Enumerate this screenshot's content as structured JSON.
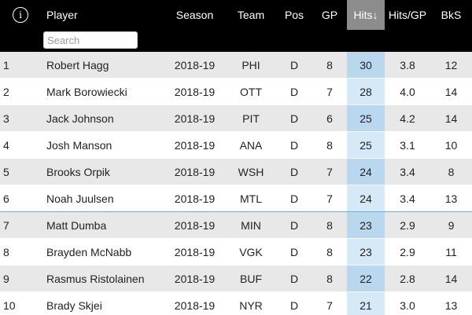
{
  "table": {
    "info_icon": "info-circle-icon",
    "search_placeholder": "Search",
    "columns": {
      "rank": "",
      "player": "Player",
      "season": "Season",
      "team": "Team",
      "pos": "Pos",
      "gp": "GP",
      "hits": "Hits↓",
      "hits_per_gp": "Hits/GP",
      "bks": "BkS"
    },
    "sorted_column": "hits",
    "colors": {
      "header_bg": "#000000",
      "sorted_header_bg": "#8c8c8c",
      "row_stripe": "#e8e8e8",
      "sorted_col_highlight": "#b9d8ee",
      "selected_row_border": "#6aaedc"
    },
    "rows": [
      {
        "rank": "1",
        "player": "Robert Hagg",
        "season": "2018-19",
        "team": "PHI",
        "pos": "D",
        "gp": "8",
        "hits": "30",
        "hits_per_gp": "3.8",
        "bks": "12"
      },
      {
        "rank": "2",
        "player": "Mark Borowiecki",
        "season": "2018-19",
        "team": "OTT",
        "pos": "D",
        "gp": "7",
        "hits": "28",
        "hits_per_gp": "4.0",
        "bks": "14"
      },
      {
        "rank": "3",
        "player": "Jack Johnson",
        "season": "2018-19",
        "team": "PIT",
        "pos": "D",
        "gp": "6",
        "hits": "25",
        "hits_per_gp": "4.2",
        "bks": "14"
      },
      {
        "rank": "4",
        "player": "Josh Manson",
        "season": "2018-19",
        "team": "ANA",
        "pos": "D",
        "gp": "8",
        "hits": "25",
        "hits_per_gp": "3.1",
        "bks": "10"
      },
      {
        "rank": "5",
        "player": "Brooks Orpik",
        "season": "2018-19",
        "team": "WSH",
        "pos": "D",
        "gp": "7",
        "hits": "24",
        "hits_per_gp": "3.4",
        "bks": "8"
      },
      {
        "rank": "6",
        "player": "Noah Juulsen",
        "season": "2018-19",
        "team": "MTL",
        "pos": "D",
        "gp": "7",
        "hits": "24",
        "hits_per_gp": "3.4",
        "bks": "13"
      },
      {
        "rank": "7",
        "player": "Matt Dumba",
        "season": "2018-19",
        "team": "MIN",
        "pos": "D",
        "gp": "8",
        "hits": "23",
        "hits_per_gp": "2.9",
        "bks": "9"
      },
      {
        "rank": "8",
        "player": "Brayden McNabb",
        "season": "2018-19",
        "team": "VGK",
        "pos": "D",
        "gp": "8",
        "hits": "23",
        "hits_per_gp": "2.9",
        "bks": "11"
      },
      {
        "rank": "9",
        "player": "Rasmus Ristolainen",
        "season": "2018-19",
        "team": "BUF",
        "pos": "D",
        "gp": "8",
        "hits": "22",
        "hits_per_gp": "2.8",
        "bks": "14"
      },
      {
        "rank": "10",
        "player": "Brady Skjei",
        "season": "2018-19",
        "team": "NYR",
        "pos": "D",
        "gp": "7",
        "hits": "21",
        "hits_per_gp": "3.0",
        "bks": "13"
      }
    ]
  }
}
